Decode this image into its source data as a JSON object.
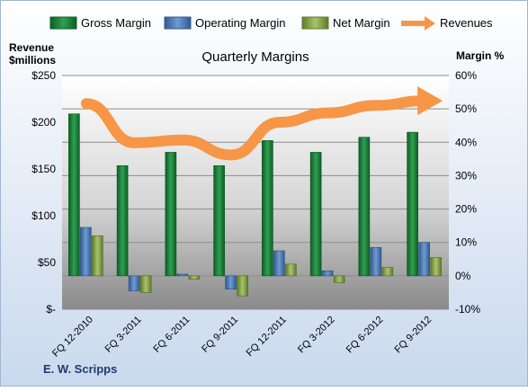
{
  "chart_data": {
    "type": "bar",
    "title": "Quarterly Margins",
    "footer": "E. W. Scripps",
    "left_axis_label_line1": "Revenue",
    "left_axis_label_line2": "$millions",
    "right_axis_label": "Margin %",
    "categories": [
      "FQ 12-2010",
      "FQ 3-2011",
      "FQ 6-2011",
      "FQ 9-2011",
      "FQ 12-2011",
      "FQ 3-2012",
      "FQ 6-2012",
      "FQ 9-2012"
    ],
    "left_axis": {
      "ylim": [
        0,
        250
      ],
      "ticks": [
        0,
        50,
        100,
        150,
        200,
        250
      ],
      "tick_labels": [
        "$-",
        "$50",
        "$100",
        "$150",
        "$200",
        "$250"
      ]
    },
    "right_axis": {
      "ylim": [
        -10,
        60
      ],
      "ticks": [
        -10,
        0,
        10,
        20,
        30,
        40,
        50,
        60
      ],
      "tick_labels": [
        "-10%",
        "0%",
        "10%",
        "20%",
        "30%",
        "40%",
        "50%",
        "60%"
      ]
    },
    "bar_series": [
      {
        "name": "Gross Margin",
        "axis": "right",
        "color": "#1e7a3a",
        "values": [
          48.5,
          33.0,
          37.0,
          33.0,
          40.5,
          37.0,
          41.5,
          43.0
        ]
      },
      {
        "name": "Operating Margin",
        "axis": "right",
        "color": "#4f81bd",
        "values": [
          14.5,
          -4.5,
          0.5,
          -4.0,
          7.5,
          1.5,
          8.5,
          10.0
        ]
      },
      {
        "name": "Net Margin",
        "axis": "right",
        "color": "#9bbb59",
        "values": [
          12.0,
          -5.0,
          -1.0,
          -6.0,
          3.5,
          -2.0,
          2.5,
          5.5
        ]
      }
    ],
    "line_series": [
      {
        "name": "Revenues",
        "axis": "left",
        "color": "#f79646",
        "values": [
          220,
          178,
          181,
          165,
          200,
          210,
          218,
          223
        ]
      }
    ],
    "legend_position": "top",
    "grid": true
  }
}
